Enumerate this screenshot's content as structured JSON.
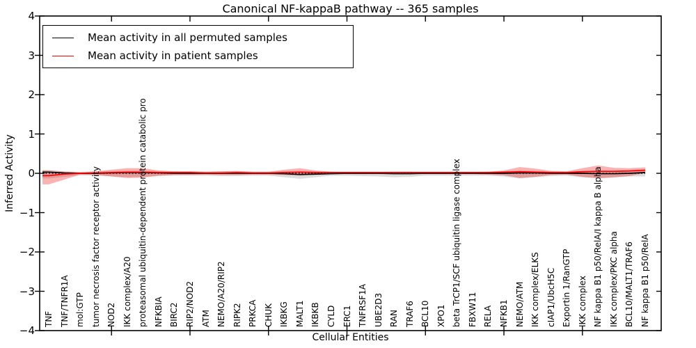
{
  "figure": {
    "title": "Canonical NF-kappaB pathway -- 365 samples",
    "xlabel": "Cellular Entities",
    "ylabel": "Inferred Activity"
  },
  "legend": {
    "items": [
      {
        "label": "Mean activity in all permuted samples",
        "color": "#000000"
      },
      {
        "label": "Mean activity in patient samples",
        "color": "#ff0000"
      }
    ]
  },
  "chart_data": {
    "type": "line",
    "title": "Canonical NF-kappaB pathway -- 365 samples",
    "xlabel": "Cellular Entities",
    "ylabel": "Inferred Activity",
    "ylim": [
      -4,
      4
    ],
    "yticks": [
      4,
      3,
      2,
      1,
      0,
      -1,
      -2,
      -3,
      -4
    ],
    "yticklabels": [
      "4",
      "3",
      "2",
      "1",
      "0",
      "−1",
      "−2",
      "−3",
      "−4"
    ],
    "major_xtick_indices": [
      4,
      9,
      14,
      19,
      24,
      29,
      34
    ],
    "grid": false,
    "legend_position": "upper left",
    "zero_line": {
      "value": 0,
      "style": "dotted",
      "color": "#000000"
    },
    "categories": [
      "TNF",
      "TNF/TNFR1A",
      "mol:GTP",
      "tumor necrosis factor receptor activity",
      "NOD2",
      "IKK complex/A20",
      "proteasomal ubiquitin-dependent protein catabolic pro",
      "NFKBIA",
      "BIRC2",
      "RIP2/NOD2",
      "ATM",
      "NEMO/A20/RIP2",
      "RIPK2",
      "PRKCA",
      "CHUK",
      "IKBKG",
      "MALT1",
      "IKBKB",
      "CYLD",
      "ERC1",
      "TNFRSF1A",
      "UBE2D3",
      "RAN",
      "TRAF6",
      "BCL10",
      "XPO1",
      "beta TrCP1/SCF ubiquitin ligase complex",
      "FBXW11",
      "RELA",
      "NFKB1",
      "NEMO/ATM",
      "IKK complex/ELKS",
      "cIAP1/UbcH5C",
      "Exportin 1/RanGTP",
      "IKK complex",
      "NF kappa B1 p50/RelA/I kappa B alpha",
      "IKK complex/PKC alpha",
      "BCL10/MALT1/TRAF6",
      "NF kappa B1 p50/RelA"
    ],
    "series": [
      {
        "name": "Mean activity in all permuted samples",
        "color": "#000000",
        "style": "solid",
        "values": [
          0.03,
          0.01,
          0.0,
          0.0,
          0.01,
          0.02,
          0.02,
          0.01,
          0.0,
          0.0,
          0.0,
          0.0,
          0.0,
          0.0,
          0.0,
          -0.01,
          -0.03,
          -0.02,
          -0.01,
          0.0,
          0.0,
          0.0,
          -0.01,
          -0.01,
          0.0,
          0.0,
          0.0,
          0.0,
          0.0,
          0.0,
          0.01,
          0.01,
          0.0,
          0.0,
          0.0,
          -0.01,
          -0.01,
          0.0,
          0.02
        ]
      },
      {
        "name": "Mean activity in patient samples",
        "color": "#ff0000",
        "style": "solid",
        "values": [
          -0.06,
          -0.02,
          0.0,
          0.01,
          0.02,
          0.03,
          0.03,
          0.02,
          0.02,
          0.02,
          0.01,
          0.01,
          0.02,
          0.01,
          0.01,
          0.02,
          0.03,
          0.02,
          0.02,
          0.02,
          0.02,
          0.02,
          0.02,
          0.02,
          0.02,
          0.02,
          0.02,
          0.02,
          0.02,
          0.03,
          0.04,
          0.03,
          0.02,
          0.02,
          0.04,
          0.05,
          0.05,
          0.06,
          0.08
        ]
      }
    ],
    "bands": [
      {
        "name": "permuted-samples-range",
        "color": "rgba(128,128,128,0.28)",
        "upper": [
          0.07,
          0.05,
          0.04,
          0.05,
          0.06,
          0.07,
          0.07,
          0.06,
          0.05,
          0.05,
          0.04,
          0.05,
          0.05,
          0.04,
          0.04,
          0.05,
          0.06,
          0.05,
          0.04,
          0.04,
          0.04,
          0.04,
          0.04,
          0.04,
          0.04,
          0.04,
          0.04,
          0.04,
          0.04,
          0.05,
          0.07,
          0.06,
          0.05,
          0.04,
          0.06,
          0.07,
          0.06,
          0.05,
          0.06
        ],
        "lower": [
          -0.13,
          -0.09,
          -0.05,
          -0.06,
          -0.08,
          -0.1,
          -0.09,
          -0.07,
          -0.06,
          -0.06,
          -0.06,
          -0.07,
          -0.07,
          -0.06,
          -0.06,
          -0.1,
          -0.14,
          -0.1,
          -0.06,
          -0.06,
          -0.07,
          -0.08,
          -0.1,
          -0.09,
          -0.06,
          -0.06,
          -0.06,
          -0.06,
          -0.06,
          -0.08,
          -0.13,
          -0.1,
          -0.07,
          -0.06,
          -0.1,
          -0.12,
          -0.11,
          -0.08,
          -0.08
        ]
      },
      {
        "name": "patient-samples-range",
        "color": "rgba(240,25,25,0.33)",
        "upper": [
          0.08,
          0.04,
          0.02,
          0.05,
          0.09,
          0.13,
          0.13,
          0.07,
          0.05,
          0.05,
          0.04,
          0.05,
          0.06,
          0.04,
          0.04,
          0.09,
          0.13,
          0.07,
          0.04,
          0.03,
          0.03,
          0.03,
          0.04,
          0.04,
          0.03,
          0.03,
          0.03,
          0.03,
          0.04,
          0.07,
          0.16,
          0.12,
          0.06,
          0.05,
          0.13,
          0.2,
          0.14,
          0.13,
          0.15
        ],
        "lower": [
          -0.28,
          -0.16,
          -0.03,
          -0.04,
          -0.08,
          -0.12,
          -0.11,
          -0.06,
          -0.04,
          -0.04,
          -0.03,
          -0.04,
          -0.04,
          -0.03,
          -0.03,
          -0.04,
          -0.06,
          -0.04,
          -0.02,
          -0.02,
          -0.02,
          -0.02,
          -0.02,
          -0.02,
          -0.02,
          -0.02,
          -0.02,
          -0.02,
          -0.03,
          -0.05,
          -0.12,
          -0.09,
          -0.04,
          -0.03,
          -0.09,
          -0.13,
          -0.1,
          -0.07,
          0.01
        ]
      }
    ]
  }
}
